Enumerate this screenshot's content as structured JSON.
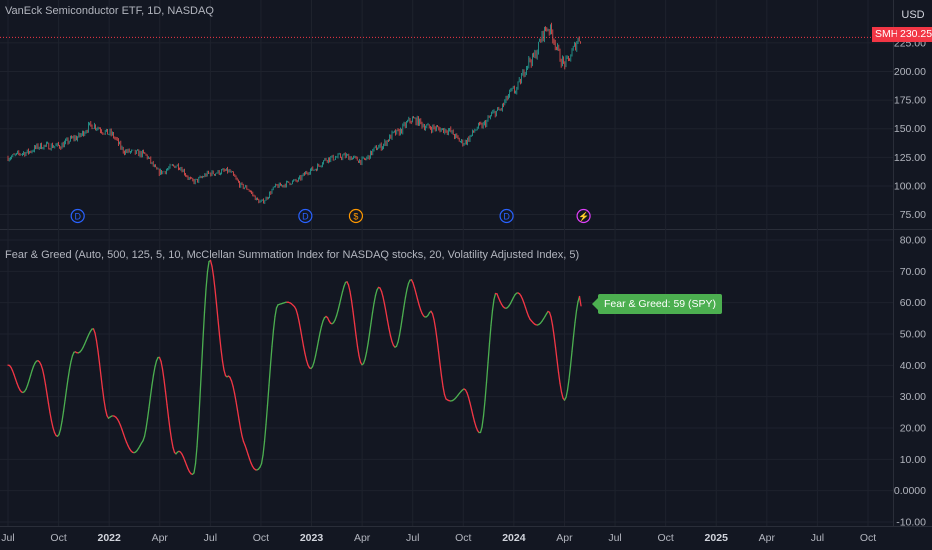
{
  "main_pane": {
    "title": "VanEck Semiconductor ETF, 1D, NASDAQ",
    "currency": "USD",
    "symbol_badge": "SMH",
    "last_price": "230.25",
    "y_ticks": [
      "75.00",
      "100.00",
      "125.00",
      "150.00",
      "175.00",
      "200.00",
      "225.00"
    ],
    "event_markers": [
      {
        "date": "2021-11-05",
        "glyph": "D",
        "type": "dividend",
        "color": "#2962ff"
      },
      {
        "date": "2022-12-20",
        "glyph": "D",
        "type": "dividend",
        "color": "#2962ff"
      },
      {
        "date": "2023-03-20",
        "glyph": "$",
        "type": "earnings",
        "color": "#ff9800"
      },
      {
        "date": "2023-12-18",
        "glyph": "D",
        "type": "dividend",
        "color": "#2962ff"
      },
      {
        "date": "2024-05-05",
        "glyph": "⚡",
        "type": "split",
        "color": "#e040fb"
      }
    ]
  },
  "indicator_pane": {
    "title": "Fear & Greed (Auto, 500, 125, 5, 10, McClellan Summation Index for NASDAQ stocks, 20, Volatility Adjusted Index, 5)",
    "label": "Fear & Greed: 59 (SPY)",
    "y_ticks": [
      "-10.00",
      "0.0000",
      "10.00",
      "20.00",
      "30.00",
      "40.00",
      "50.00",
      "60.00",
      "70.00",
      "80.00"
    ]
  },
  "time_axis": {
    "ticks": [
      {
        "label": "Jul",
        "bold": false
      },
      {
        "label": "Oct",
        "bold": false
      },
      {
        "label": "2022",
        "bold": true
      },
      {
        "label": "Apr",
        "bold": false
      },
      {
        "label": "Jul",
        "bold": false
      },
      {
        "label": "Oct",
        "bold": false
      },
      {
        "label": "2023",
        "bold": true
      },
      {
        "label": "Apr",
        "bold": false
      },
      {
        "label": "Jul",
        "bold": false
      },
      {
        "label": "Oct",
        "bold": false
      },
      {
        "label": "2024",
        "bold": true
      },
      {
        "label": "Apr",
        "bold": false
      },
      {
        "label": "Jul",
        "bold": false
      },
      {
        "label": "Oct",
        "bold": false
      },
      {
        "label": "2025",
        "bold": true
      },
      {
        "label": "Apr",
        "bold": false
      },
      {
        "label": "Jul",
        "bold": false
      },
      {
        "label": "Oct",
        "bold": false
      }
    ]
  },
  "colors": {
    "up": "#26a69a",
    "down": "#ef5350",
    "fg_up": "#4caf50",
    "fg_down": "#f23645",
    "grid": "#1e222d",
    "background": "#131722",
    "axis_text": "#b2b5be"
  },
  "chart_data": [
    {
      "type": "line",
      "title": "VanEck Semiconductor ETF, 1D, NASDAQ",
      "ylim": [
        65,
        245
      ],
      "x": [
        "2021-07",
        "2021-08",
        "2021-09",
        "2021-10",
        "2021-11",
        "2021-12",
        "2022-01",
        "2022-02",
        "2022-03",
        "2022-04",
        "2022-05",
        "2022-06",
        "2022-07",
        "2022-08",
        "2022-09",
        "2022-10",
        "2022-11",
        "2022-12",
        "2023-01",
        "2023-02",
        "2023-03",
        "2023-04",
        "2023-05",
        "2023-06",
        "2023-07",
        "2023-08",
        "2023-09",
        "2023-10",
        "2023-11",
        "2023-12",
        "2024-01",
        "2024-02",
        "2024-03",
        "2024-04",
        "2024-05"
      ],
      "series": [
        {
          "name": "SMH",
          "values": [
            125,
            129,
            135,
            135,
            142,
            153,
            146,
            130,
            128,
            112,
            118,
            104,
            111,
            113,
            99,
            86,
            100,
            104,
            114,
            124,
            126,
            122,
            134,
            146,
            158,
            151,
            149,
            138,
            152,
            165,
            183,
            210,
            238,
            207,
            230
          ]
        }
      ]
    },
    {
      "type": "line",
      "title": "Fear & Greed (Auto, 500, 125, 5, 10, McClellan Summation Index for NASDAQ stocks, 20, Volatility Adjusted Index, 5)",
      "ylim": [
        -10,
        80
      ],
      "x": [
        "2021-07",
        "2021-08",
        "2021-09",
        "2021-10",
        "2021-11",
        "2021-12",
        "2022-01",
        "2022-02",
        "2022-03",
        "2022-04",
        "2022-05",
        "2022-06",
        "2022-07",
        "2022-08",
        "2022-09",
        "2022-10",
        "2022-11",
        "2022-12",
        "2023-01",
        "2023-02",
        "2023-03",
        "2023-04",
        "2023-05",
        "2023-06",
        "2023-07",
        "2023-08",
        "2023-09",
        "2023-10",
        "2023-11",
        "2023-12",
        "2024-01",
        "2024-02",
        "2024-03",
        "2024-04",
        "2024-05"
      ],
      "series": [
        {
          "name": "Fear & Greed",
          "values": [
            35,
            30,
            38,
            20,
            50,
            48,
            22,
            12,
            18,
            48,
            10,
            5,
            68,
            38,
            20,
            8,
            60,
            52,
            40,
            58,
            68,
            42,
            58,
            46,
            68,
            60,
            32,
            26,
            18,
            62,
            66,
            58,
            52,
            28,
            59
          ]
        }
      ]
    }
  ]
}
